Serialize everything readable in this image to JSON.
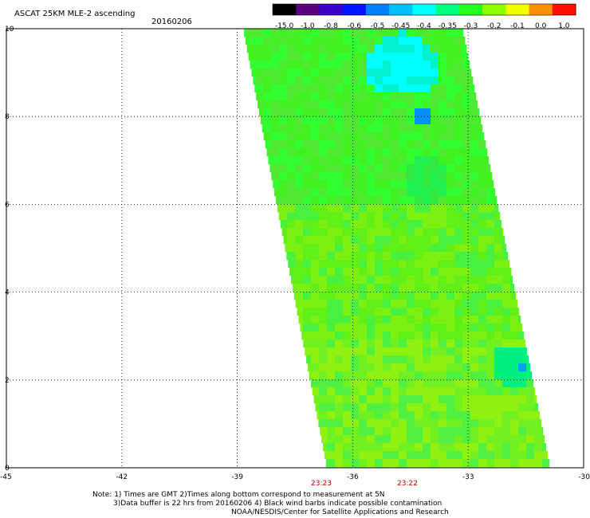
{
  "title": "ASCAT 25KM MLE-2 ascending",
  "date": "20160206",
  "colorbar": {
    "labels": [
      "-15.0",
      "-1.0",
      "-0.8",
      "-0.6",
      "-0.5",
      "-0.45",
      "-0.4",
      "-0.35",
      "-0.3",
      "-0.2",
      "-0.1",
      "0.0",
      "1.0"
    ],
    "colors": [
      "#000000",
      "#5a007f",
      "#3a00c8",
      "#0016ff",
      "#0080ff",
      "#00c0ff",
      "#00ffff",
      "#00ff80",
      "#20ff20",
      "#8cff00",
      "#f0ff00",
      "#ff9000",
      "#ff1000"
    ]
  },
  "axes": {
    "x_ticks": [
      "-45",
      "-42",
      "-39",
      "-36",
      "-33",
      "-30"
    ],
    "y_ticks": [
      "0",
      "2",
      "4",
      "6",
      "8",
      "10"
    ],
    "x_range": [
      -45,
      -30
    ],
    "y_range": [
      0,
      10
    ]
  },
  "time_labels": [
    "23:23",
    "23:22"
  ],
  "notes": [
    "Note: 1) Times are GMT 2)Times along bottom correspond to measurement at 5N",
    "3)Data buffer is 22 hrs from 20160206 4) Black wind barbs indicate possible contamination",
    "NOAA/NESDIS/Center for Satellite Applications and Research"
  ]
}
